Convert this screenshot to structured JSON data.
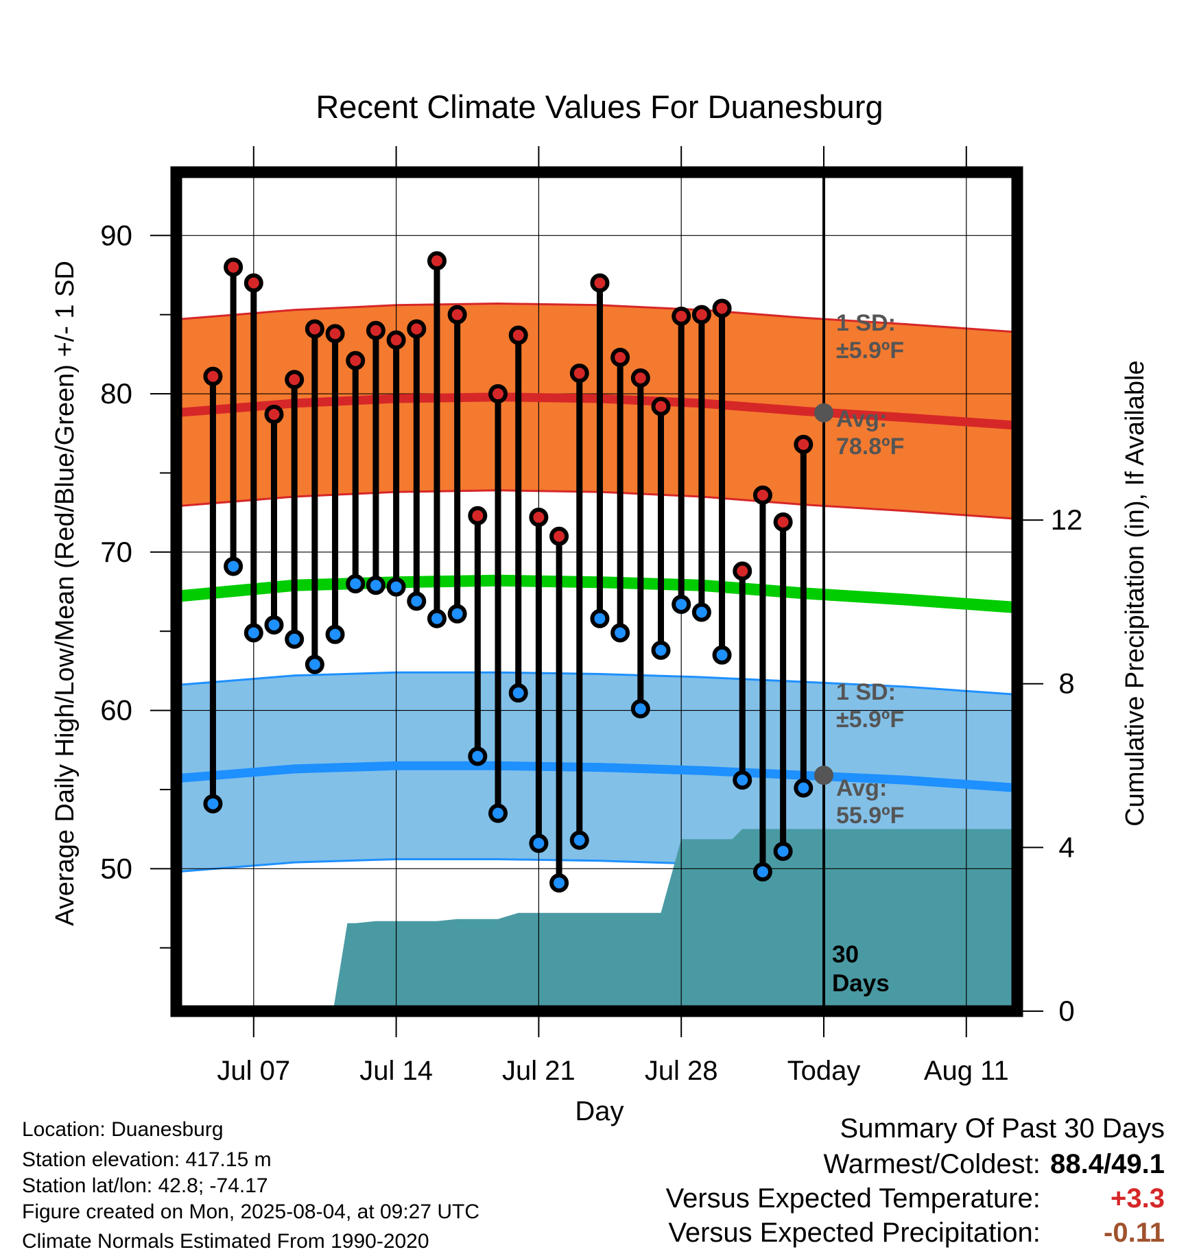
{
  "chart_data": {
    "type": "line",
    "title": "Recent Climate Values For Duanesburg",
    "xlabel": "Day",
    "ylabel": "Average Daily High/Low/Mean (Red/Blue/Green) +/- 1 SD",
    "y2label": "Cumulative Precipitation (in), If Available",
    "ylim": [
      41,
      94
    ],
    "y2lim": [
      0,
      20.5
    ],
    "yticks": [
      "50",
      "60",
      "70",
      "80",
      "90"
    ],
    "y2ticks": [
      "0",
      "4",
      "8",
      "12"
    ],
    "xlim": [
      -0.8,
      40.5
    ],
    "xticks": [
      {
        "day": 3,
        "label": "Jul 07"
      },
      {
        "day": 10,
        "label": "Jul 14"
      },
      {
        "day": 17,
        "label": "Jul 21"
      },
      {
        "day": 24,
        "label": "Jul 28"
      },
      {
        "day": 31,
        "label": "Today"
      },
      {
        "day": 38,
        "label": "Aug 11"
      }
    ],
    "grid": true,
    "today_label": "30\nDays",
    "normals": {
      "days": [
        -0.8,
        5,
        10,
        15,
        20,
        25,
        30,
        35,
        40.5
      ],
      "high_mean": [
        78.8,
        79.4,
        79.7,
        79.8,
        79.7,
        79.4,
        78.9,
        78.5,
        78.0
      ],
      "high_sd": 5.9,
      "low_mean": [
        55.7,
        56.3,
        56.5,
        56.5,
        56.4,
        56.2,
        55.9,
        55.6,
        55.1
      ],
      "low_sd": 5.9,
      "mean": [
        67.2,
        67.9,
        68.1,
        68.2,
        68.1,
        67.9,
        67.4,
        67.0,
        66.5
      ]
    },
    "high_color": "#d62728",
    "high_band_color": "#f47a2f",
    "low_color": "#1e90ff",
    "low_band_color": "#82c0e8",
    "mean_color": "#00cc00",
    "precip_color": "#4a9aa3",
    "series": [
      {
        "name": "High",
        "days": [
          1,
          2,
          3,
          4,
          5,
          6,
          7,
          8,
          9,
          10,
          11,
          12,
          13,
          14,
          15,
          16,
          17,
          18,
          19,
          20,
          21,
          22,
          23,
          24,
          25,
          26,
          27,
          28,
          29,
          30
        ],
        "values": [
          81.1,
          88.0,
          87.0,
          78.7,
          80.9,
          84.1,
          83.8,
          82.1,
          84.0,
          83.4,
          84.1,
          88.4,
          85.0,
          72.3,
          80.0,
          83.7,
          72.2,
          71.0,
          81.3,
          87.0,
          82.3,
          81.0,
          79.2,
          84.9,
          85.0,
          85.4,
          68.8,
          73.6,
          71.9,
          76.8
        ]
      },
      {
        "name": "Low",
        "days": [
          1,
          2,
          3,
          4,
          5,
          6,
          7,
          8,
          9,
          10,
          11,
          12,
          13,
          14,
          15,
          16,
          17,
          18,
          19,
          20,
          21,
          22,
          23,
          24,
          25,
          26,
          27,
          28,
          29,
          30
        ],
        "values": [
          54.1,
          69.1,
          64.9,
          65.4,
          64.5,
          62.9,
          64.8,
          68.0,
          67.9,
          67.8,
          66.9,
          65.8,
          66.1,
          57.1,
          53.5,
          61.1,
          51.6,
          49.1,
          51.8,
          65.8,
          64.9,
          60.1,
          63.8,
          66.7,
          66.2,
          63.5,
          55.6,
          49.8,
          51.1,
          55.1
        ]
      },
      {
        "name": "Precipitation",
        "days": [
          0,
          6.9,
          7.6,
          8,
          9,
          10,
          11,
          12,
          13,
          14,
          15,
          16,
          17,
          18,
          19,
          20,
          21,
          22,
          22.6,
          23,
          24,
          25,
          26,
          26.5,
          27,
          28,
          29,
          40.5
        ],
        "values": [
          0,
          0,
          2.15,
          2.15,
          2.2,
          2.2,
          2.2,
          2.2,
          2.25,
          2.25,
          2.25,
          2.4,
          2.4,
          2.4,
          2.4,
          2.4,
          2.4,
          2.4,
          2.4,
          2.4,
          4.2,
          4.2,
          4.2,
          4.2,
          4.45,
          4.45,
          4.45,
          4.45
        ]
      }
    ],
    "annotations": {
      "high_sd": "1 SD:\n±5.9ºF",
      "high_avg": "Avg:\n78.8ºF",
      "low_sd": "1 SD:\n±5.9ºF",
      "low_avg": "Avg:\n55.9ºF"
    },
    "today_high_avg": 78.8,
    "today_low_avg": 55.9
  },
  "info": {
    "location": "Location: Duanesburg",
    "elevation": "Station elevation: 417.15 m",
    "latlon": "Station lat/lon: 42.8; -74.17",
    "created": "Figure created on Mon, 2025-08-04, at 09:27 UTC",
    "normals": "Climate Normals Estimated From 1990-2020"
  },
  "summary": {
    "title": "Summary Of Past 30 Days",
    "warm_cold_label": "Warmest/Coldest:",
    "warm_cold_value": "88.4/49.1",
    "temp_label": "Versus Expected Temperature:",
    "temp_value": "+3.3",
    "temp_color": "#d62728",
    "precip_label": "Versus Expected Precipitation:",
    "precip_value": "-0.11",
    "precip_color": "#a0522d"
  }
}
